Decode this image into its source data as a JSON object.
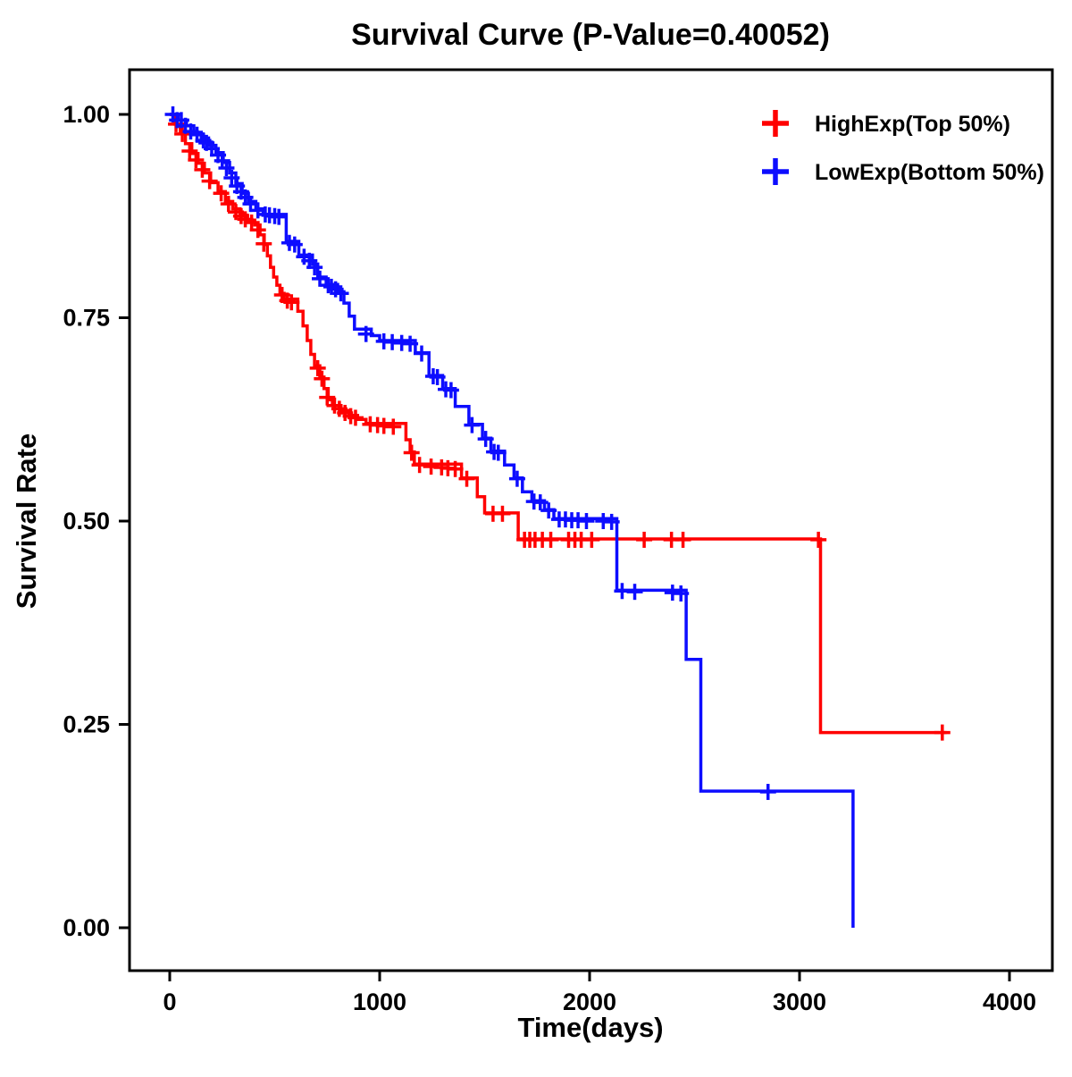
{
  "chart_data": {
    "type": "line",
    "subtype": "kaplan-meier-step-survival",
    "title": "Survival Curve (P-Value=0.40052)",
    "p_value": 0.40052,
    "xlabel": "Time(days)",
    "ylabel": "Survival Rate",
    "xlim": [
      0,
      4000
    ],
    "ylim": [
      0.0,
      1.0
    ],
    "xticks": [
      0,
      1000,
      2000,
      3000,
      4000
    ],
    "xtick_labels": [
      "0",
      "1000",
      "2000",
      "3000",
      "4000"
    ],
    "yticks": [
      0,
      0.25,
      0.5,
      0.75,
      1.0
    ],
    "ytick_labels": [
      "0.00",
      "0.25",
      "0.50",
      "0.75",
      "1.00"
    ],
    "grid": false,
    "legend_position": "top-right",
    "censor_marker": "plus",
    "series": [
      {
        "name": "HighExp(Top 50%)",
        "color": "#FF0000",
        "end_time": 3700,
        "steps": [
          [
            0,
            1.0
          ],
          [
            25,
            0.988
          ],
          [
            50,
            0.976
          ],
          [
            75,
            0.964
          ],
          [
            105,
            0.952
          ],
          [
            135,
            0.94
          ],
          [
            165,
            0.928
          ],
          [
            195,
            0.916
          ],
          [
            230,
            0.905
          ],
          [
            265,
            0.893
          ],
          [
            300,
            0.884
          ],
          [
            335,
            0.876
          ],
          [
            370,
            0.87
          ],
          [
            405,
            0.864
          ],
          [
            430,
            0.852
          ],
          [
            450,
            0.84
          ],
          [
            465,
            0.826
          ],
          [
            480,
            0.812
          ],
          [
            495,
            0.8
          ],
          [
            510,
            0.79
          ],
          [
            525,
            0.78
          ],
          [
            545,
            0.773
          ],
          [
            610,
            0.758
          ],
          [
            635,
            0.74
          ],
          [
            655,
            0.722
          ],
          [
            672,
            0.705
          ],
          [
            690,
            0.691
          ],
          [
            715,
            0.677
          ],
          [
            735,
            0.663
          ],
          [
            755,
            0.649
          ],
          [
            775,
            0.642
          ],
          [
            815,
            0.636
          ],
          [
            855,
            0.63
          ],
          [
            895,
            0.625
          ],
          [
            935,
            0.62
          ],
          [
            1125,
            0.6
          ],
          [
            1145,
            0.585
          ],
          [
            1165,
            0.57
          ],
          [
            1390,
            0.553
          ],
          [
            1465,
            0.53
          ],
          [
            1500,
            0.51
          ],
          [
            1660,
            0.478
          ],
          [
            3100,
            0.24
          ]
        ],
        "censors": [
          [
            30,
            0.988
          ],
          [
            60,
            0.976
          ],
          [
            95,
            0.955
          ],
          [
            125,
            0.944
          ],
          [
            155,
            0.932
          ],
          [
            190,
            0.918
          ],
          [
            245,
            0.903
          ],
          [
            280,
            0.89
          ],
          [
            315,
            0.88
          ],
          [
            340,
            0.875
          ],
          [
            360,
            0.871
          ],
          [
            390,
            0.867
          ],
          [
            420,
            0.858
          ],
          [
            448,
            0.841
          ],
          [
            535,
            0.778
          ],
          [
            560,
            0.771
          ],
          [
            580,
            0.769
          ],
          [
            705,
            0.688
          ],
          [
            725,
            0.675
          ],
          [
            750,
            0.652
          ],
          [
            785,
            0.642
          ],
          [
            808,
            0.638
          ],
          [
            835,
            0.633
          ],
          [
            862,
            0.629
          ],
          [
            885,
            0.627
          ],
          [
            955,
            0.619
          ],
          [
            990,
            0.618
          ],
          [
            1020,
            0.617
          ],
          [
            1065,
            0.616
          ],
          [
            1152,
            0.584
          ],
          [
            1190,
            0.569
          ],
          [
            1245,
            0.567
          ],
          [
            1295,
            0.566
          ],
          [
            1325,
            0.565
          ],
          [
            1360,
            0.564
          ],
          [
            1415,
            0.552
          ],
          [
            1540,
            0.509
          ],
          [
            1585,
            0.509
          ],
          [
            1690,
            0.477
          ],
          [
            1715,
            0.477
          ],
          [
            1740,
            0.477
          ],
          [
            1775,
            0.477
          ],
          [
            1815,
            0.477
          ],
          [
            1900,
            0.477
          ],
          [
            1930,
            0.477
          ],
          [
            1960,
            0.477
          ],
          [
            2010,
            0.477
          ],
          [
            2260,
            0.477
          ],
          [
            2390,
            0.477
          ],
          [
            2445,
            0.477
          ],
          [
            3090,
            0.477
          ],
          [
            3680,
            0.24
          ]
        ]
      },
      {
        "name": "LowExp(Bottom 50%)",
        "color": "#0D0DFF",
        "end_time": 3255,
        "steps": [
          [
            0,
            1.0
          ],
          [
            40,
            0.993
          ],
          [
            80,
            0.986
          ],
          [
            115,
            0.978
          ],
          [
            150,
            0.971
          ],
          [
            185,
            0.962
          ],
          [
            220,
            0.953
          ],
          [
            255,
            0.941
          ],
          [
            285,
            0.928
          ],
          [
            315,
            0.915
          ],
          [
            345,
            0.903
          ],
          [
            375,
            0.893
          ],
          [
            410,
            0.884
          ],
          [
            445,
            0.877
          ],
          [
            555,
            0.844
          ],
          [
            615,
            0.827
          ],
          [
            680,
            0.816
          ],
          [
            705,
            0.8
          ],
          [
            745,
            0.791
          ],
          [
            800,
            0.782
          ],
          [
            830,
            0.768
          ],
          [
            855,
            0.752
          ],
          [
            880,
            0.736
          ],
          [
            960,
            0.728
          ],
          [
            1000,
            0.722
          ],
          [
            1170,
            0.707
          ],
          [
            1235,
            0.679
          ],
          [
            1300,
            0.663
          ],
          [
            1360,
            0.641
          ],
          [
            1425,
            0.619
          ],
          [
            1490,
            0.602
          ],
          [
            1530,
            0.586
          ],
          [
            1595,
            0.569
          ],
          [
            1640,
            0.553
          ],
          [
            1680,
            0.536
          ],
          [
            1725,
            0.525
          ],
          [
            1785,
            0.514
          ],
          [
            1830,
            0.503
          ],
          [
            2130,
            0.415
          ],
          [
            2460,
            0.33
          ],
          [
            2530,
            0.168
          ],
          [
            3255,
            0.0
          ]
        ],
        "censors": [
          [
            15,
            1.0
          ],
          [
            35,
            0.993
          ],
          [
            55,
            0.993
          ],
          [
            75,
            0.986
          ],
          [
            100,
            0.979
          ],
          [
            130,
            0.975
          ],
          [
            160,
            0.968
          ],
          [
            175,
            0.965
          ],
          [
            200,
            0.958
          ],
          [
            230,
            0.95
          ],
          [
            250,
            0.943
          ],
          [
            270,
            0.934
          ],
          [
            295,
            0.922
          ],
          [
            320,
            0.912
          ],
          [
            340,
            0.905
          ],
          [
            360,
            0.898
          ],
          [
            385,
            0.89
          ],
          [
            420,
            0.882
          ],
          [
            455,
            0.877
          ],
          [
            475,
            0.876
          ],
          [
            500,
            0.875
          ],
          [
            520,
            0.874
          ],
          [
            570,
            0.842
          ],
          [
            595,
            0.84
          ],
          [
            640,
            0.825
          ],
          [
            665,
            0.82
          ],
          [
            690,
            0.812
          ],
          [
            715,
            0.798
          ],
          [
            755,
            0.79
          ],
          [
            770,
            0.788
          ],
          [
            790,
            0.785
          ],
          [
            815,
            0.78
          ],
          [
            935,
            0.73
          ],
          [
            1020,
            0.721
          ],
          [
            1060,
            0.72
          ],
          [
            1105,
            0.719
          ],
          [
            1145,
            0.718
          ],
          [
            1200,
            0.706
          ],
          [
            1255,
            0.678
          ],
          [
            1275,
            0.677
          ],
          [
            1315,
            0.662
          ],
          [
            1340,
            0.661
          ],
          [
            1440,
            0.618
          ],
          [
            1505,
            0.601
          ],
          [
            1545,
            0.585
          ],
          [
            1565,
            0.584
          ],
          [
            1655,
            0.552
          ],
          [
            1735,
            0.524
          ],
          [
            1765,
            0.523
          ],
          [
            1805,
            0.513
          ],
          [
            1855,
            0.502
          ],
          [
            1885,
            0.502
          ],
          [
            1915,
            0.501
          ],
          [
            1945,
            0.501
          ],
          [
            1985,
            0.5
          ],
          [
            2065,
            0.5
          ],
          [
            2105,
            0.499
          ],
          [
            2155,
            0.414
          ],
          [
            2215,
            0.413
          ],
          [
            2395,
            0.412
          ],
          [
            2435,
            0.411
          ],
          [
            2850,
            0.167
          ]
        ]
      }
    ]
  }
}
